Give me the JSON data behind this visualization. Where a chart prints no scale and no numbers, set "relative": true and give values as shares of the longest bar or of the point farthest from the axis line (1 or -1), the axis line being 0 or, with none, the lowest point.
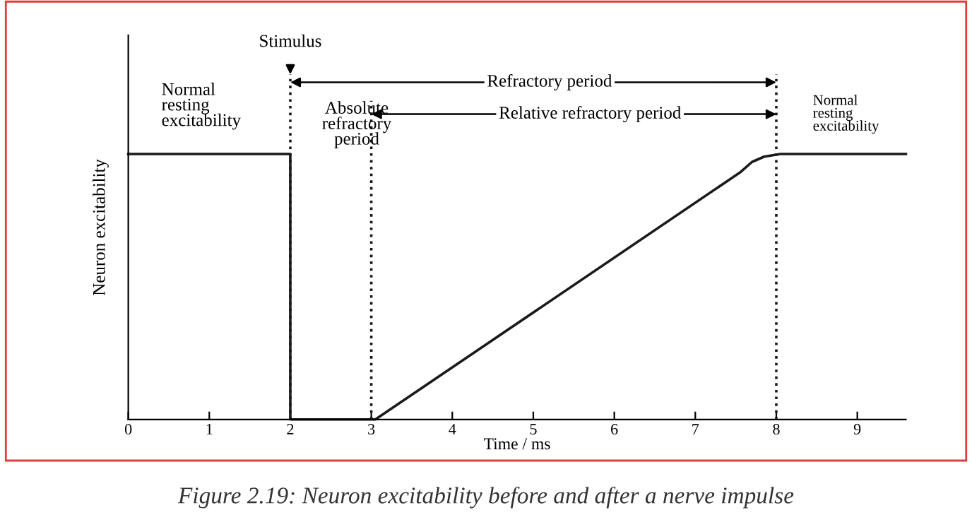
{
  "chart_data": {
    "type": "line",
    "relative": true,
    "xlabel": "Time / ms",
    "ylabel": "Neuron excitability",
    "x": [
      0,
      2,
      2,
      3.05,
      7.55,
      7.7,
      7.85,
      8.05,
      9.6
    ],
    "values": [
      1,
      1,
      0,
      0,
      0.93,
      0.97,
      0.99,
      1,
      1
    ],
    "color": "#1a1a1a",
    "xlim": [
      0,
      9.6
    ],
    "xticks": [
      0,
      1,
      2,
      3,
      4,
      5,
      6,
      7,
      8,
      9
    ],
    "grid": false,
    "marker": "none",
    "line_style": "solid",
    "ref_lines": [
      {
        "axis": "x",
        "value": 2,
        "color": "#1a1a1a",
        "line_style": "dotted"
      },
      {
        "axis": "x",
        "value": 3,
        "color": "#1a1a1a",
        "line_style": "dotted"
      },
      {
        "axis": "x",
        "value": 8,
        "color": "#1a1a1a",
        "line_style": "dotted"
      }
    ],
    "annotations": [
      "Stimulus",
      "Refractory period",
      "Relative refractory period",
      "Normal\nresting\nexcitability",
      "Absolute\nrefractory\nperiod",
      "Normal\nresting\nexcitability",
      "Figure 2.19: Neuron excitability before and after a nerve impulse"
    ]
  }
}
